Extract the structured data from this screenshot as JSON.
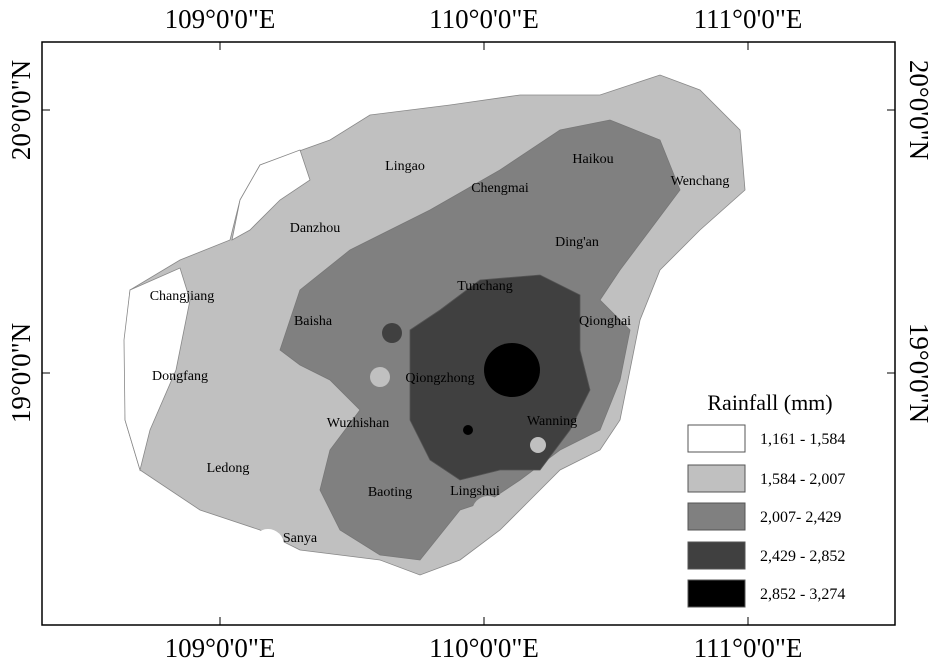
{
  "axes": {
    "top": [
      "109°0'0\"E",
      "110°0'0\"E",
      "111°0'0\"E"
    ],
    "bottom": [
      "109°0'0\"E",
      "110°0'0\"E",
      "111°0'0\"E"
    ],
    "left": [
      "20°0'0\"N",
      "19°0'0\"N"
    ],
    "right": [
      "20°0'0\"N",
      "19°0'0\"N"
    ]
  },
  "places": [
    "Lingao",
    "Chengmai",
    "Haikou",
    "Wenchang",
    "Danzhou",
    "Ding'an",
    "Changjiang",
    "Tunchang",
    "Baisha",
    "Qionghai",
    "Dongfang",
    "Qiongzhong",
    "Wuzhishan",
    "Wanning",
    "Ledong",
    "Baoting",
    "Lingshui",
    "Sanya"
  ],
  "legend": {
    "title": "Rainfall (mm)",
    "items": [
      {
        "label": "1,161 - 1,584",
        "color": "#ffffff"
      },
      {
        "label": "1,584 - 2,007",
        "color": "#c0c0c0"
      },
      {
        "label": "2,007- 2,429",
        "color": "#808080"
      },
      {
        "label": "2,429 - 2,852",
        "color": "#404040"
      },
      {
        "label": "2,852 - 3,274",
        "color": "#000000"
      }
    ]
  }
}
